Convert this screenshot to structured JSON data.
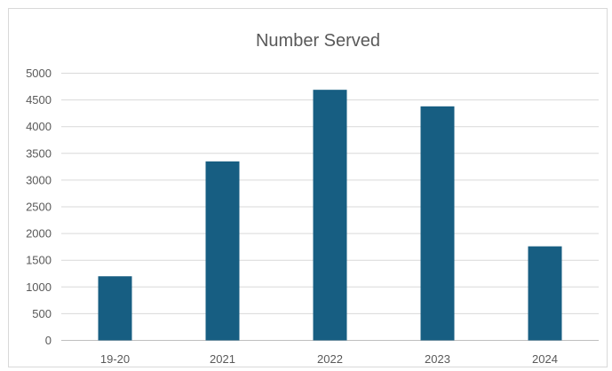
{
  "chart_data": {
    "type": "bar",
    "title": "Number Served",
    "xlabel": "",
    "ylabel": "",
    "categories": [
      "19-20",
      "2021",
      "2022",
      "2023",
      "2024"
    ],
    "values": [
      1200,
      3350,
      4690,
      4380,
      1760
    ],
    "ylim": [
      0,
      5000
    ],
    "yticks": [
      0,
      500,
      1000,
      1500,
      2000,
      2500,
      3000,
      3500,
      4000,
      4500,
      5000
    ],
    "grid": true,
    "legend": "none",
    "colors": {
      "bar": "#175E82",
      "grid": "#d9d9d9",
      "text": "#595959",
      "axis": "#bfbfbf"
    }
  }
}
